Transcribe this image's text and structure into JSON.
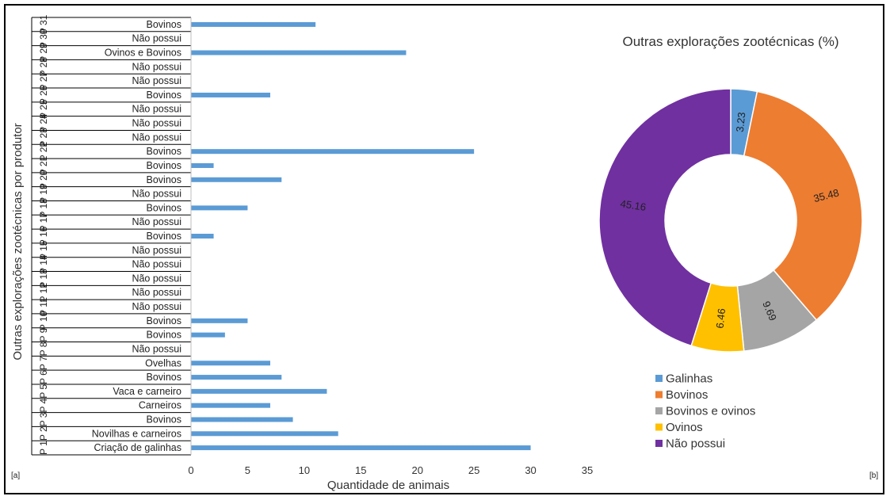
{
  "chart_data": [
    {
      "type": "bar",
      "panel_label": "[a]",
      "xlabel": "Quantidade de animais",
      "ylabel": "Outras explorações zootécnicas por produtor",
      "xlim": [
        0,
        35
      ],
      "xticks": [
        "0",
        "5",
        "10",
        "15",
        "20",
        "25",
        "30",
        "35"
      ],
      "bar_color": "#5b9bd5",
      "categories": [
        {
          "producer": "P 1",
          "label": "Criação de galinhas",
          "value": 30
        },
        {
          "producer": "P 2",
          "label": "Novilhas e carneiros",
          "value": 13
        },
        {
          "producer": "P 3",
          "label": "Bovinos",
          "value": 9
        },
        {
          "producer": "P 4",
          "label": "Carneiros",
          "value": 7
        },
        {
          "producer": "P 5",
          "label": "Vaca e carneiro",
          "value": 12
        },
        {
          "producer": "P 6",
          "label": "Bovinos",
          "value": 8
        },
        {
          "producer": "P 7",
          "label": "Ovelhas",
          "value": 7
        },
        {
          "producer": "P 8",
          "label": "Não possui",
          "value": 0
        },
        {
          "producer": "P 9",
          "label": "Bovinos",
          "value": 3
        },
        {
          "producer": "P 10",
          "label": "Bovinos",
          "value": 5
        },
        {
          "producer": "P 11",
          "label": "Não possui",
          "value": 0
        },
        {
          "producer": "P 12",
          "label": "Não possui",
          "value": 0
        },
        {
          "producer": "P 13",
          "label": "Não possui",
          "value": 0
        },
        {
          "producer": "P 14",
          "label": "Não possui",
          "value": 0
        },
        {
          "producer": "P 15",
          "label": "Não possui",
          "value": 0
        },
        {
          "producer": "P 16",
          "label": "Bovinos",
          "value": 2
        },
        {
          "producer": "P 17",
          "label": "Não possui",
          "value": 0
        },
        {
          "producer": "P 18",
          "label": "Bovinos",
          "value": 5
        },
        {
          "producer": "P 19",
          "label": "Não possui",
          "value": 0
        },
        {
          "producer": "P 20",
          "label": "Bovinos",
          "value": 8
        },
        {
          "producer": "P 21",
          "label": "Bovinos",
          "value": 2
        },
        {
          "producer": "P 22",
          "label": "Bovinos",
          "value": 25
        },
        {
          "producer": "P 23",
          "label": "Não possui",
          "value": 0
        },
        {
          "producer": "P 24",
          "label": "Não possui",
          "value": 0
        },
        {
          "producer": "P 25",
          "label": "Não possui",
          "value": 0
        },
        {
          "producer": "P 26",
          "label": "Bovinos",
          "value": 7
        },
        {
          "producer": "P 27",
          "label": "Não possui",
          "value": 0
        },
        {
          "producer": "P 28",
          "label": "Não possui",
          "value": 0
        },
        {
          "producer": "P 29",
          "label": "Ovinos e Bovinos",
          "value": 19
        },
        {
          "producer": "P 30",
          "label": "Não possui",
          "value": 0
        },
        {
          "producer": "P 31",
          "label": "Bovinos",
          "value": 11
        }
      ]
    },
    {
      "type": "pie",
      "panel_label": "[b]",
      "title": "Outras explorações zootécnicas (%)",
      "donut": true,
      "legend_position": "bottom",
      "slices": [
        {
          "name": "Galinhas",
          "label": "3.23",
          "value": 3.23,
          "color": "#5b9bd5"
        },
        {
          "name": "Bovinos",
          "label": "35.48",
          "value": 35.48,
          "color": "#ed7d31"
        },
        {
          "name": "Bovinos e ovinos",
          "label": "9.69",
          "value": 9.69,
          "color": "#a5a5a5"
        },
        {
          "name": "Ovinos",
          "label": "6.46",
          "value": 6.46,
          "color": "#ffc000"
        },
        {
          "name": "Não possui",
          "label": "45.16",
          "value": 45.16,
          "color": "#7030a0"
        }
      ]
    }
  ]
}
